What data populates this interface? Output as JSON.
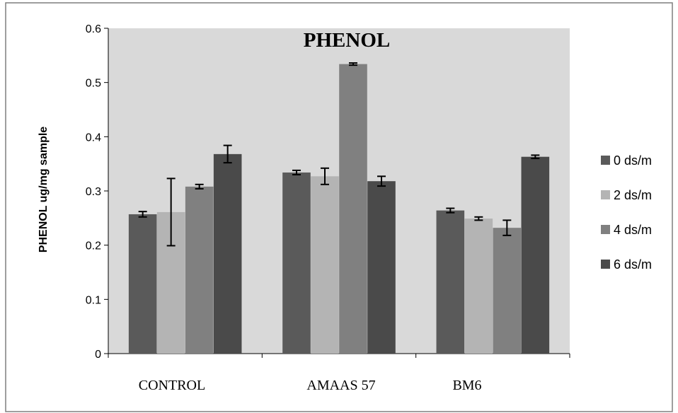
{
  "chart_data": {
    "type": "bar",
    "title": "PHENOL",
    "xlabel": "",
    "ylabel": "PHENOL ug/mg sample",
    "ylim": [
      0,
      0.6
    ],
    "yticks": [
      "0",
      "0.1",
      "0.2",
      "0.3",
      "0.4",
      "0.5",
      "0.6"
    ],
    "categories": [
      "CONTROL",
      "AMAAS 57",
      "BM6"
    ],
    "series": [
      {
        "name": "0 ds/m",
        "color": "#5a5a5a",
        "values": [
          0.257,
          0.334,
          0.264
        ],
        "errors": [
          0.005,
          0.004,
          0.004
        ]
      },
      {
        "name": "2 ds/m",
        "color": "#b4b4b4",
        "values": [
          0.261,
          0.327,
          0.249
        ],
        "errors": [
          0.062,
          0.015,
          0.003
        ]
      },
      {
        "name": "4 ds/m",
        "color": "#808080",
        "values": [
          0.308,
          0.534,
          0.232
        ],
        "errors": [
          0.004,
          0.002,
          0.014
        ]
      },
      {
        "name": "6 ds/m",
        "color": "#4a4a4a",
        "values": [
          0.368,
          0.318,
          0.363
        ],
        "errors": [
          0.016,
          0.009,
          0.003
        ]
      }
    ],
    "grid": false,
    "legend_position": "right",
    "plot_background": "#d9d9d9"
  }
}
